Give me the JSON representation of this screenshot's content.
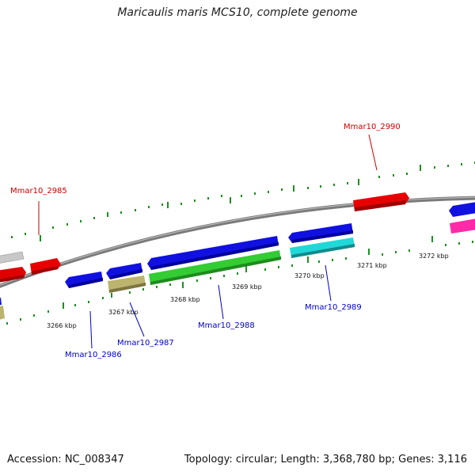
{
  "title": "Maricaulis maris MCS10, complete genome",
  "footer": {
    "accession": "Accession: NC_008347",
    "summary": "Topology: circular; Length: 3,368,780 bp; Genes: 3,116"
  },
  "colors": {
    "backbone": "#8a8a8a",
    "tick": "#1e8f1e",
    "label_forward": "#cc0000",
    "label_reverse": "#0000cc"
  },
  "scale_labels": [
    "3266 kbp",
    "3267 kbp",
    "3268 kbp",
    "3269 kbp",
    "3270 kbp",
    "3271 kbp",
    "3272 kbp"
  ],
  "gene_labels": {
    "g2985": "Mmar10_2985",
    "g2986": "Mmar10_2986",
    "g2987": "Mmar10_2987",
    "g2988": "Mmar10_2988",
    "g2989": "Mmar10_2989",
    "g2990": "Mmar10_2990"
  }
}
